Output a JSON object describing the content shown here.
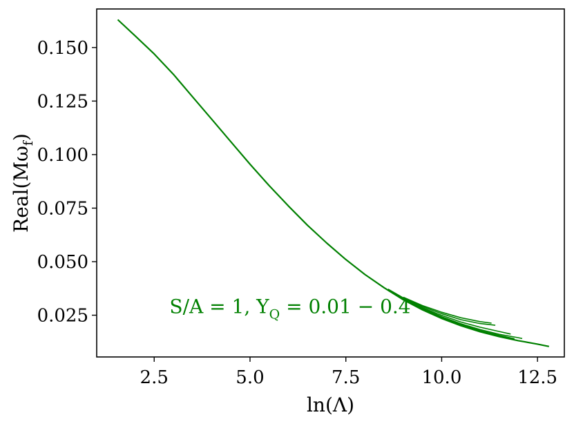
{
  "chart_data": {
    "type": "line",
    "xlabel": "ln(Λ)",
    "ylabel": "Real(Mω_f)",
    "ylabel_main": "Real(Mω",
    "ylabel_sub": "f",
    "ylabel_close": ")",
    "xlim": [
      1.0,
      13.2
    ],
    "ylim": [
      0.0055,
      0.168
    ],
    "xticks": [
      2.5,
      5.0,
      7.5,
      10.0,
      12.5
    ],
    "xtick_labels": [
      "2.5",
      "5.0",
      "7.5",
      "10.0",
      "12.5"
    ],
    "yticks": [
      0.025,
      0.05,
      0.075,
      0.1,
      0.125,
      0.15
    ],
    "ytick_labels": [
      "0.025",
      "0.050",
      "0.075",
      "0.100",
      "0.125",
      "0.150"
    ],
    "grid": false,
    "line_color": "#008000",
    "annotation": {
      "text_main": "S/A = 1, Y",
      "text_sub": "Q",
      "text_rest": " = 0.01 − 0.4",
      "x": 2.9,
      "y": 0.026
    },
    "series": [
      {
        "x": [
          1.55,
          2.0,
          2.5,
          3.0,
          3.5,
          4.0,
          4.5,
          5.0,
          5.5,
          6.0,
          6.5,
          7.0,
          7.5,
          8.0,
          8.5,
          9.0,
          9.5,
          10.0,
          10.5,
          11.0,
          11.5,
          12.0,
          12.5,
          12.8
        ],
        "y": [
          0.163,
          0.1555,
          0.147,
          0.1375,
          0.127,
          0.1165,
          0.106,
          0.0955,
          0.0855,
          0.076,
          0.067,
          0.0587,
          0.051,
          0.044,
          0.0378,
          0.0322,
          0.0275,
          0.0235,
          0.0201,
          0.0173,
          0.015,
          0.0131,
          0.0115,
          0.0104
        ]
      },
      {
        "x": [
          8.6,
          9.0,
          9.5,
          10.0,
          10.5,
          11.0,
          11.4
        ],
        "y": [
          0.0372,
          0.0331,
          0.029,
          0.0257,
          0.0229,
          0.0211,
          0.0203
        ]
      },
      {
        "x": [
          8.6,
          9.0,
          9.5,
          10.0,
          10.5,
          11.0,
          11.5,
          11.8
        ],
        "y": [
          0.0369,
          0.0328,
          0.0285,
          0.0249,
          0.0218,
          0.0194,
          0.0174,
          0.0162
        ]
      },
      {
        "x": [
          8.6,
          9.0,
          9.5,
          10.0,
          10.5,
          11.0,
          11.5,
          12.0,
          12.1
        ],
        "y": [
          0.0366,
          0.0325,
          0.0281,
          0.0243,
          0.021,
          0.0183,
          0.0161,
          0.0145,
          0.0141
        ]
      },
      {
        "x": [
          9.0,
          9.5,
          10.0,
          10.5,
          11.0,
          11.3
        ],
        "y": [
          0.0334,
          0.0295,
          0.0264,
          0.0238,
          0.022,
          0.0213
        ]
      },
      {
        "x": [
          9.0,
          9.5,
          10.0,
          10.5,
          11.0,
          11.5,
          11.9
        ],
        "y": [
          0.0322,
          0.0278,
          0.024,
          0.0206,
          0.0178,
          0.0156,
          0.014
        ]
      }
    ]
  }
}
